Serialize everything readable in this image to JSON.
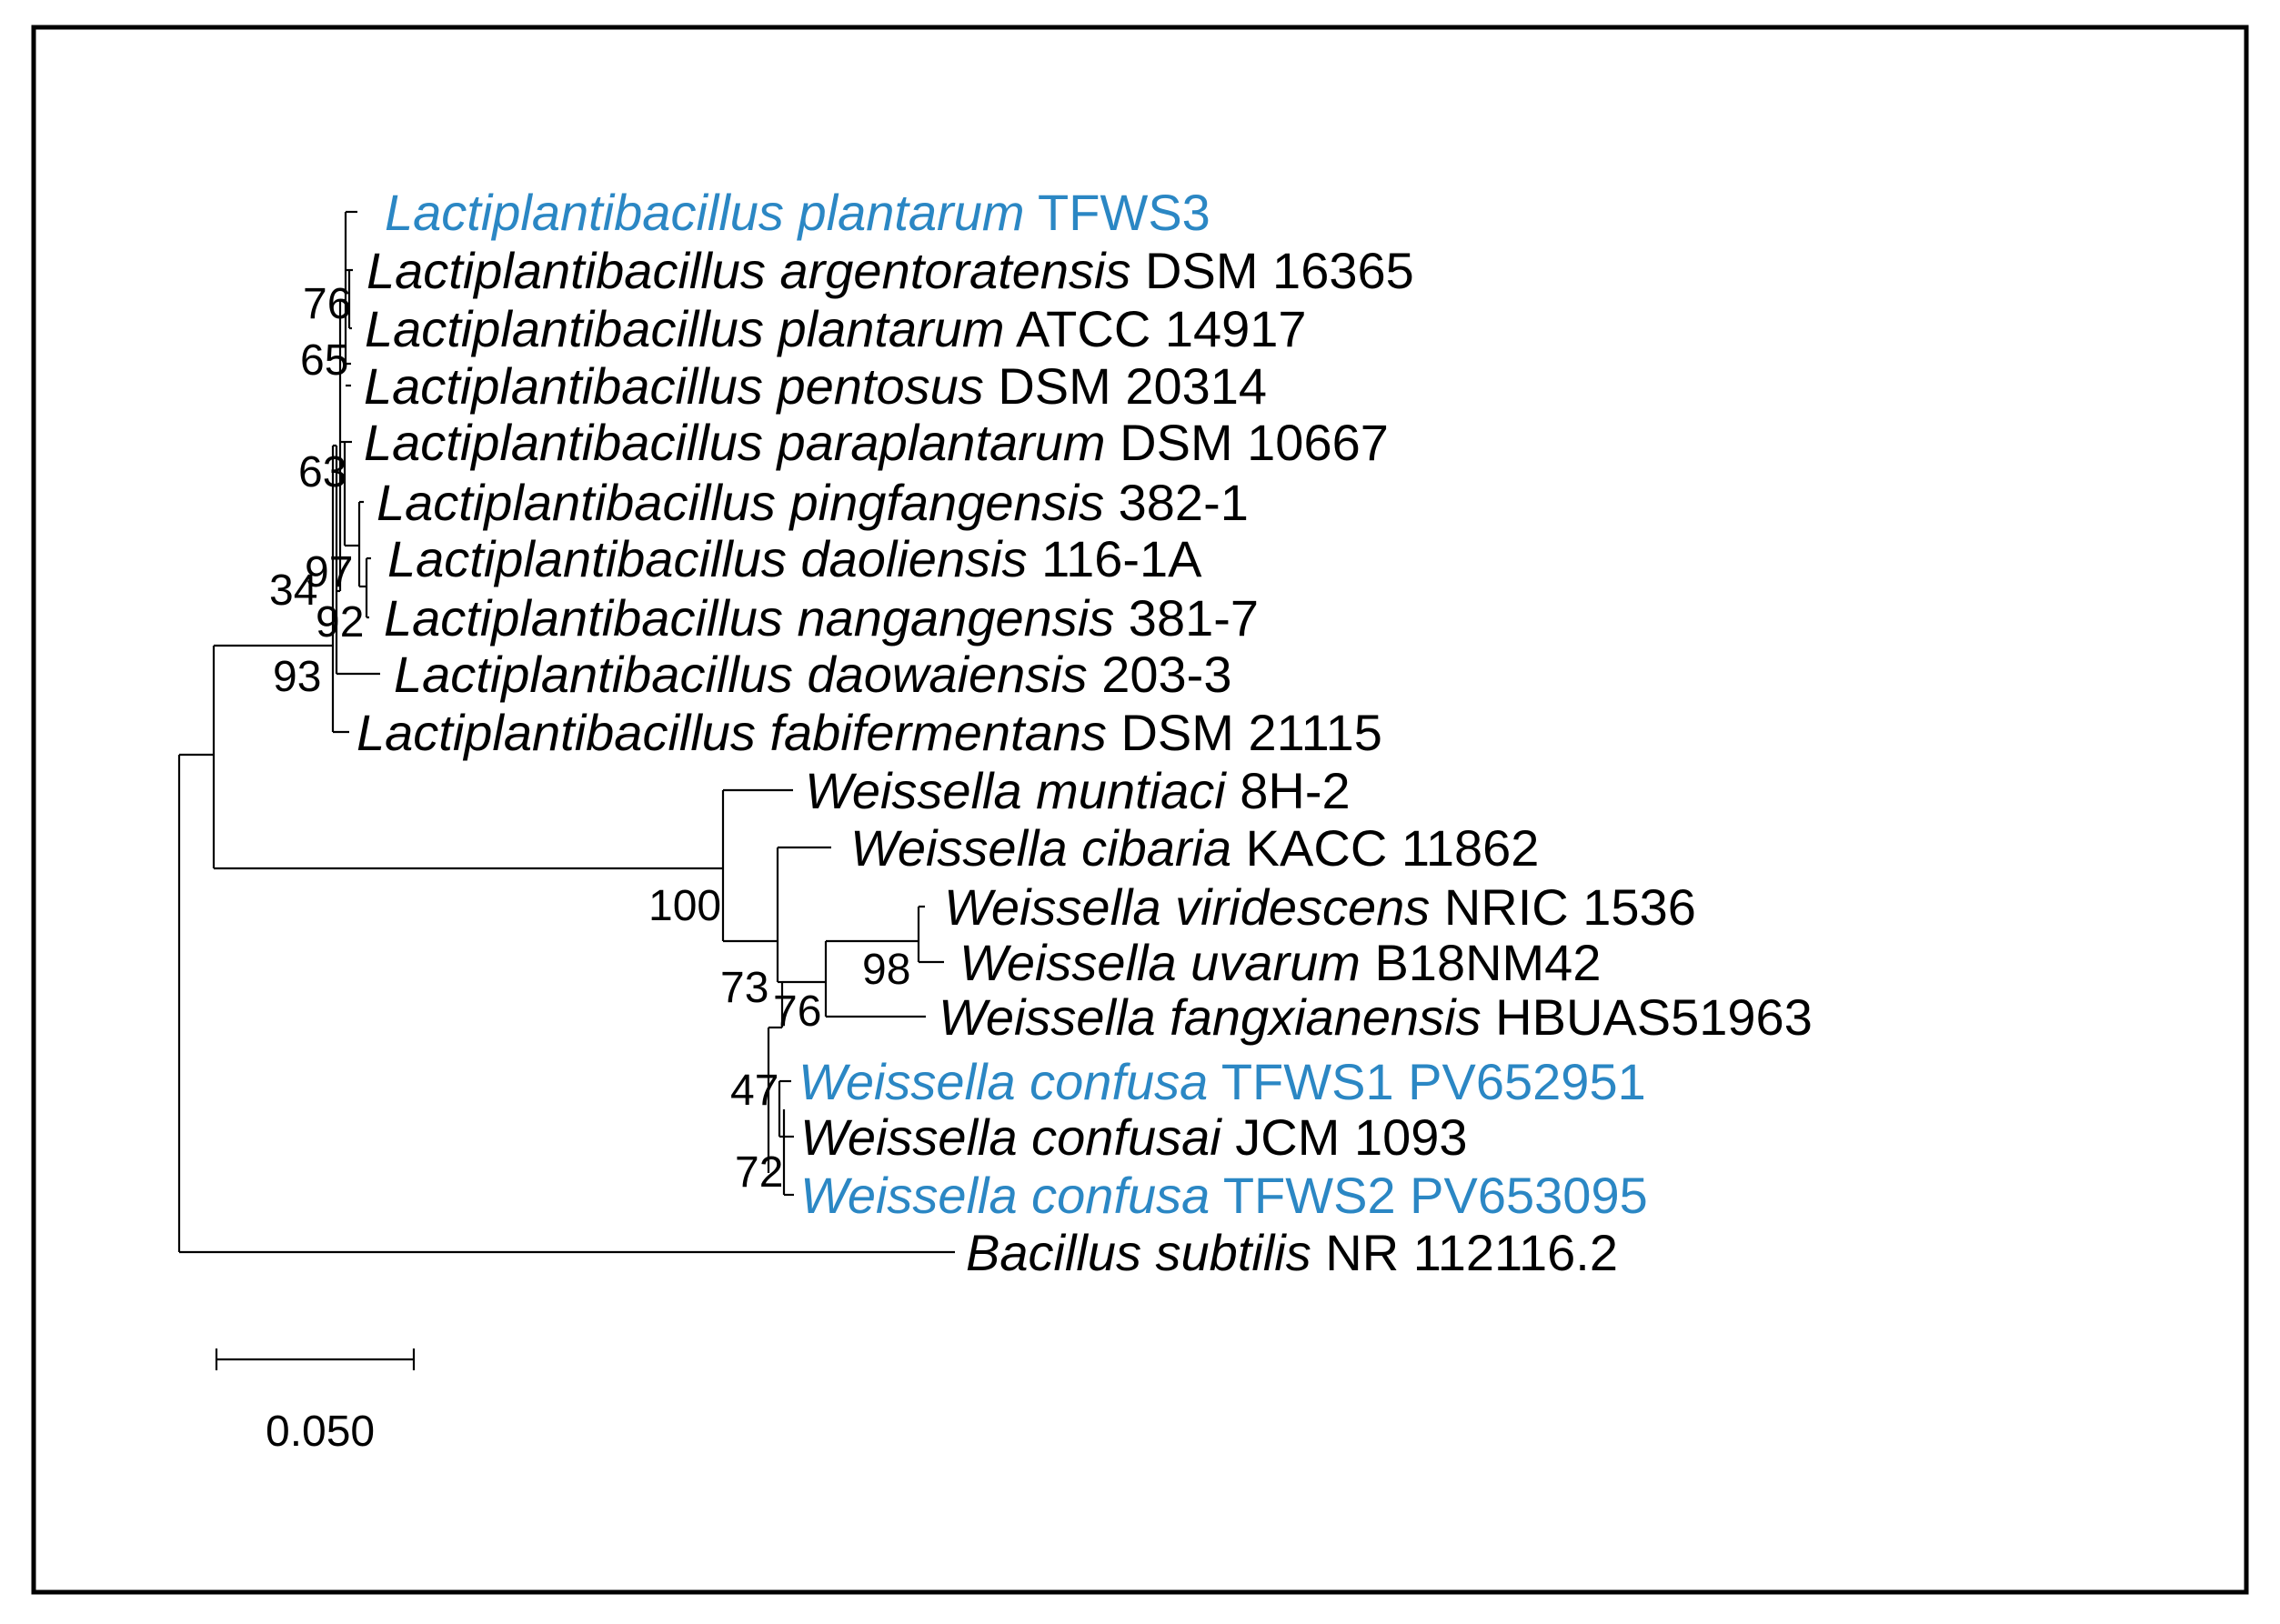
{
  "colors": {
    "highlight": "#2b87c4",
    "default": "#000000"
  },
  "taxa": [
    {
      "id": "t1",
      "genus_species": "Lactiplantibacillus plantarum",
      "strain": "TFWS3",
      "highlight": true
    },
    {
      "id": "t2",
      "genus_species": "Lactiplantibacillus argentoratensis",
      "strain": "DSM 16365",
      "highlight": false
    },
    {
      "id": "t3",
      "genus_species": "Lactiplantibacillus plantarum",
      "strain": "ATCC 14917",
      "highlight": false
    },
    {
      "id": "t4",
      "genus_species": "Lactiplantibacillus pentosus",
      "strain": "DSM 20314",
      "highlight": false
    },
    {
      "id": "t5",
      "genus_species": "Lactiplantibacillus paraplantarum",
      "strain": "DSM 10667",
      "highlight": false
    },
    {
      "id": "t6",
      "genus_species": "Lactiplantibacillus pingfangensis",
      "strain": "382-1",
      "highlight": false
    },
    {
      "id": "t7",
      "genus_species": "Lactiplantibacillus daoliensis",
      "strain": "116-1A",
      "highlight": false
    },
    {
      "id": "t8",
      "genus_species": "Lactiplantibacillus nangangensis",
      "strain": "381-7",
      "highlight": false
    },
    {
      "id": "t9",
      "genus_species": "Lactiplantibacillus daowaiensis",
      "strain": "203-3",
      "highlight": false
    },
    {
      "id": "t10",
      "genus_species": "Lactiplantibacillus fabifermentans",
      "strain": "DSM 21115",
      "highlight": false
    },
    {
      "id": "t11",
      "genus_species": "Weissella muntiaci",
      "strain": "8H-2",
      "highlight": false
    },
    {
      "id": "t12",
      "genus_species": "Weissella cibaria",
      "strain": "KACC 11862",
      "highlight": false
    },
    {
      "id": "t13",
      "genus_species": "Weissella viridescens",
      "strain": "NRIC 1536",
      "highlight": false
    },
    {
      "id": "t14",
      "genus_species": "Weissella uvarum",
      "strain": "B18NM42",
      "highlight": false
    },
    {
      "id": "t15",
      "genus_species": "Weissella fangxianensis",
      "strain": "HBUAS51963",
      "highlight": false
    },
    {
      "id": "t16",
      "genus_species": "Weissella confusa",
      "strain": "TFWS1 PV652951",
      "highlight": true
    },
    {
      "id": "t17",
      "genus_species": "Weissella confusai",
      "strain": "JCM 1093",
      "highlight": false
    },
    {
      "id": "t18",
      "genus_species": "Weissella confusa",
      "strain": "TFWS2 PV653095",
      "highlight": true
    },
    {
      "id": "t19",
      "genus_species": "Bacillus subtilis",
      "strain": "NR 112116.2",
      "highlight": false
    }
  ],
  "bootstrap": [
    "76",
    "65",
    "63",
    "97",
    "34",
    "92",
    "93",
    "100",
    "73",
    "98",
    "76",
    "47",
    "72"
  ],
  "scale_bar": {
    "label": "0.050"
  }
}
